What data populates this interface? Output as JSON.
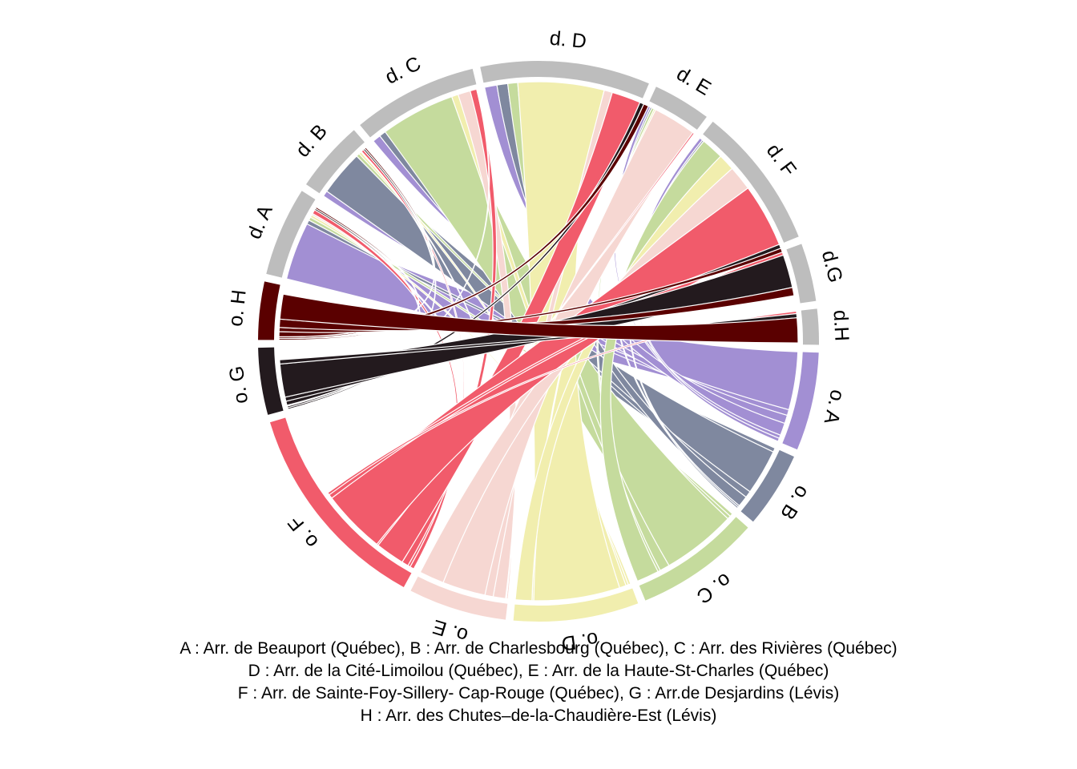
{
  "chart_data": {
    "type": "chord",
    "title": "",
    "segments": [
      {
        "id": "d.D",
        "label": "d. D",
        "value": 19.0,
        "color": "#bdbdbd",
        "role": "destination"
      },
      {
        "id": "d.E",
        "label": "d. E",
        "value": 6.5,
        "color": "#bdbdbd",
        "role": "destination"
      },
      {
        "id": "d.F",
        "label": "d. F",
        "value": 16.0,
        "color": "#bdbdbd",
        "role": "destination"
      },
      {
        "id": "d.G",
        "label": "d.G",
        "value": 6.5,
        "color": "#bdbdbd",
        "role": "destination"
      },
      {
        "id": "d.H",
        "label": "d.H",
        "value": 4.0,
        "color": "#bdbdbd",
        "role": "destination"
      },
      {
        "id": "o.A",
        "label": "o. A",
        "value": 11.0,
        "color": "#a28fd3",
        "role": "origin"
      },
      {
        "id": "o.B",
        "label": "o. B",
        "value": 8.5,
        "color": "#7f889f",
        "role": "origin"
      },
      {
        "id": "o.C",
        "label": "o. C",
        "value": 14.0,
        "color": "#c5db9d",
        "role": "origin"
      },
      {
        "id": "o.D",
        "label": "o. D",
        "value": 14.0,
        "color": "#f1eeae",
        "role": "origin"
      },
      {
        "id": "o.E",
        "label": "o. E",
        "value": 11.0,
        "color": "#f6d7d2",
        "role": "origin"
      },
      {
        "id": "o.F",
        "label": "o. F",
        "value": 24.0,
        "color": "#f15b6b",
        "role": "origin"
      },
      {
        "id": "o.G",
        "label": "o. G",
        "value": 7.5,
        "color": "#231a1e",
        "role": "origin"
      },
      {
        "id": "o.H",
        "label": "o. H",
        "value": 6.5,
        "color": "#5a0000",
        "role": "origin"
      },
      {
        "id": "d.A",
        "label": "d. A",
        "value": 10.0,
        "color": "#bdbdbd",
        "role": "destination"
      },
      {
        "id": "d.B",
        "label": "d. B",
        "value": 8.0,
        "color": "#bdbdbd",
        "role": "destination"
      },
      {
        "id": "d.C",
        "label": "d. C",
        "value": 14.0,
        "color": "#bdbdbd",
        "role": "destination"
      }
    ],
    "flows": [
      {
        "from": "o.A",
        "to": "d.A",
        "value": 7.0
      },
      {
        "from": "o.A",
        "to": "d.B",
        "value": 0.7
      },
      {
        "from": "o.A",
        "to": "d.C",
        "value": 1.0
      },
      {
        "from": "o.A",
        "to": "d.D",
        "value": 1.5
      },
      {
        "from": "o.A",
        "to": "d.E",
        "value": 0.4
      },
      {
        "from": "o.A",
        "to": "d.F",
        "value": 0.4
      },
      {
        "from": "o.B",
        "to": "d.A",
        "value": 0.5
      },
      {
        "from": "o.B",
        "to": "d.B",
        "value": 5.5
      },
      {
        "from": "o.B",
        "to": "d.C",
        "value": 0.8
      },
      {
        "from": "o.B",
        "to": "d.D",
        "value": 1.3
      },
      {
        "from": "o.B",
        "to": "d.E",
        "value": 0.2
      },
      {
        "from": "o.B",
        "to": "d.F",
        "value": 0.2
      },
      {
        "from": "o.C",
        "to": "d.A",
        "value": 0.4
      },
      {
        "from": "o.C",
        "to": "d.B",
        "value": 0.4
      },
      {
        "from": "o.C",
        "to": "d.C",
        "value": 9.0
      },
      {
        "from": "o.C",
        "to": "d.D",
        "value": 1.2
      },
      {
        "from": "o.C",
        "to": "d.E",
        "value": 0.3
      },
      {
        "from": "o.C",
        "to": "d.F",
        "value": 2.7
      },
      {
        "from": "o.D",
        "to": "d.A",
        "value": 0.3
      },
      {
        "from": "o.D",
        "to": "d.B",
        "value": 0.3
      },
      {
        "from": "o.D",
        "to": "d.C",
        "value": 0.8
      },
      {
        "from": "o.D",
        "to": "d.D",
        "value": 10.4
      },
      {
        "from": "o.D",
        "to": "d.E",
        "value": 0.2
      },
      {
        "from": "o.D",
        "to": "d.F",
        "value": 2.0
      },
      {
        "from": "o.E",
        "to": "d.A",
        "value": 0.2
      },
      {
        "from": "o.E",
        "to": "d.B",
        "value": 0.1
      },
      {
        "from": "o.E",
        "to": "d.C",
        "value": 1.5
      },
      {
        "from": "o.E",
        "to": "d.D",
        "value": 1.0
      },
      {
        "from": "o.E",
        "to": "d.E",
        "value": 5.2
      },
      {
        "from": "o.E",
        "to": "d.F",
        "value": 3.0
      },
      {
        "from": "o.F",
        "to": "d.A",
        "value": 0.5
      },
      {
        "from": "o.F",
        "to": "d.B",
        "value": 0.3
      },
      {
        "from": "o.F",
        "to": "d.C",
        "value": 0.8
      },
      {
        "from": "o.F",
        "to": "d.D",
        "value": 3.5
      },
      {
        "from": "o.F",
        "to": "d.E",
        "value": 0.2
      },
      {
        "from": "o.F",
        "to": "d.F",
        "value": 7.7
      },
      {
        "from": "o.F",
        "to": "d.G",
        "value": 0.5
      },
      {
        "from": "o.F",
        "to": "d.H",
        "value": 0.3
      },
      {
        "from": "o.G",
        "to": "d.A",
        "value": 0.2
      },
      {
        "from": "o.G",
        "to": "d.B",
        "value": 0.2
      },
      {
        "from": "o.G",
        "to": "d.C",
        "value": 0.1
      },
      {
        "from": "o.G",
        "to": "d.D",
        "value": 0.5
      },
      {
        "from": "o.G",
        "to": "d.F",
        "value": 0.5
      },
      {
        "from": "o.G",
        "to": "d.G",
        "value": 4.0
      },
      {
        "from": "o.G",
        "to": "d.H",
        "value": 0.5
      },
      {
        "from": "o.H",
        "to": "d.A",
        "value": 0.2
      },
      {
        "from": "o.H",
        "to": "d.B",
        "value": 0.2
      },
      {
        "from": "o.H",
        "to": "d.D",
        "value": 0.6
      },
      {
        "from": "o.H",
        "to": "d.F",
        "value": 0.5
      },
      {
        "from": "o.H",
        "to": "d.G",
        "value": 1.0
      },
      {
        "from": "o.H",
        "to": "d.H",
        "value": 3.0
      }
    ],
    "legend": [
      "A : Arr. de Beauport (Québec), B : Arr. de Charlesbourg (Québec), C : Arr. des Rivières (Québec)",
      "D : Arr. de la Cité-Limoilou (Québec), E : Arr. de la Haute-St-Charles (Québec)",
      "F : Arr. de Sainte-Foy-Sillery- Cap-Rouge (Québec), G : Arr.de Desjardins (Lévis)",
      "H : Arr. des Chutes–de-la-Chaudière-Est (Lévis)"
    ]
  }
}
